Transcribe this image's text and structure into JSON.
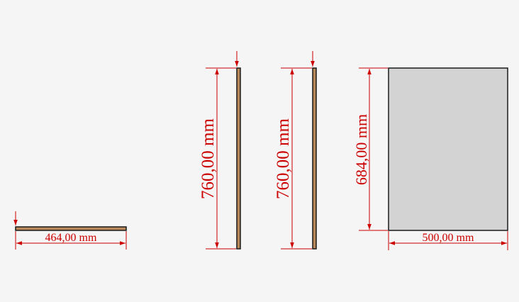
{
  "colors": {
    "background": "#f5f5f5",
    "dimension": "#cc0000",
    "board_wood": "#b8895a",
    "board_outline": "#1a1a1a",
    "panel_fill": "#d3d3d3"
  },
  "parts": {
    "shelf": {
      "width_label": "464,00 mm"
    },
    "side_left": {
      "height_label": "760,00 mm"
    },
    "side_right": {
      "height_label": "760,00 mm"
    },
    "back_panel": {
      "height_label": "684,00 mm",
      "width_label": "500,00 mm"
    }
  }
}
